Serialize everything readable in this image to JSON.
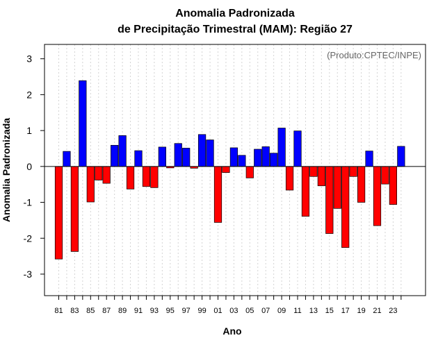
{
  "chart_data": {
    "type": "bar",
    "title": "Anomalia Padronizada",
    "subtitle": "de Precipitação Trimestral (MAM): Região 27",
    "xlabel": "Ano",
    "ylabel": "Anomalia Padronizada",
    "credit": "(Produto:CPTEC/INPE)",
    "ylim": [
      -3.6,
      3.4
    ],
    "yticks": [
      -3,
      -2,
      -1,
      0,
      1,
      2,
      3
    ],
    "ytick_labels": [
      "-3",
      "-2",
      "-1",
      "0",
      "1",
      "2",
      "3"
    ],
    "categories": [
      "81",
      "82",
      "83",
      "84",
      "85",
      "86",
      "87",
      "88",
      "89",
      "90",
      "91",
      "92",
      "93",
      "94",
      "95",
      "96",
      "97",
      "98",
      "99",
      "00",
      "01",
      "02",
      "03",
      "04",
      "05",
      "06",
      "07",
      "08",
      "09",
      "10",
      "11",
      "12",
      "13",
      "14",
      "15",
      "16",
      "17",
      "18",
      "19",
      "20",
      "21",
      "22",
      "23",
      "24"
    ],
    "xtick_labels": [
      "81",
      "83",
      "85",
      "87",
      "89",
      "91",
      "93",
      "95",
      "97",
      "99",
      "01",
      "03",
      "05",
      "07",
      "09",
      "11",
      "13",
      "15",
      "17",
      "19",
      "21",
      "23"
    ],
    "values": [
      -2.58,
      0.42,
      -2.37,
      2.39,
      -0.99,
      -0.38,
      -0.47,
      0.59,
      0.86,
      -0.63,
      0.44,
      -0.56,
      -0.59,
      0.54,
      -0.04,
      0.64,
      0.51,
      -0.05,
      0.89,
      0.74,
      -1.56,
      -0.17,
      0.52,
      0.31,
      -0.32,
      0.48,
      0.55,
      0.37,
      1.07,
      -0.66,
      0.99,
      -1.39,
      -0.28,
      -0.54,
      -1.87,
      -1.17,
      -2.26,
      -0.28,
      -1.0,
      0.43,
      -1.65,
      -0.49,
      -1.06,
      0.56
    ],
    "colors": {
      "positive": "#0000ff",
      "negative": "#ff0000",
      "zero_line": "#000000",
      "grid": "#d3d3d3"
    },
    "grid": true
  }
}
